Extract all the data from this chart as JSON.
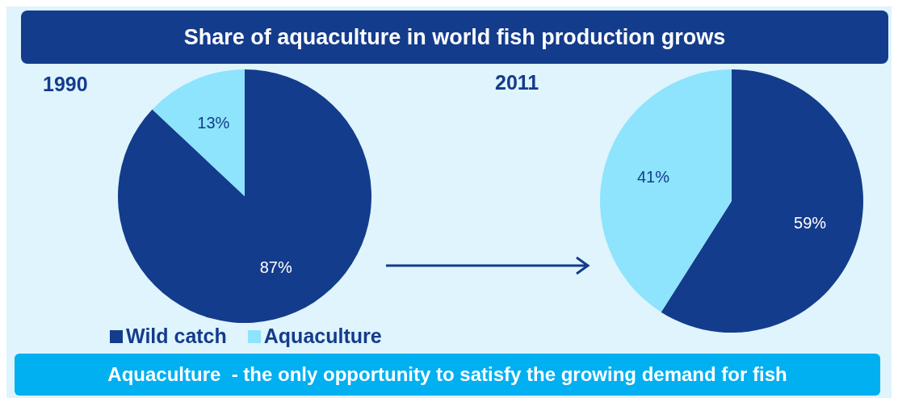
{
  "chart_data": [
    {
      "type": "pie",
      "title": "Share of aquaculture in world fish production grows",
      "subtitle": "1990",
      "categories": [
        "Wild catch",
        "Aquaculture"
      ],
      "values": [
        87,
        13
      ],
      "value_labels": [
        "87%",
        "13%"
      ],
      "colors": [
        "#143c8c",
        "#8de4fc"
      ],
      "legend": "bottom"
    },
    {
      "type": "pie",
      "title": "2011",
      "values": [
        59,
        41
      ],
      "value_labels": [
        "59%",
        "41%"
      ],
      "colors": [
        "#143c8c",
        "#8de4fc"
      ],
      "annotations": [
        "Aquaculture  - the only opportunity to satisfy the growing demand for fish"
      ]
    }
  ]
}
